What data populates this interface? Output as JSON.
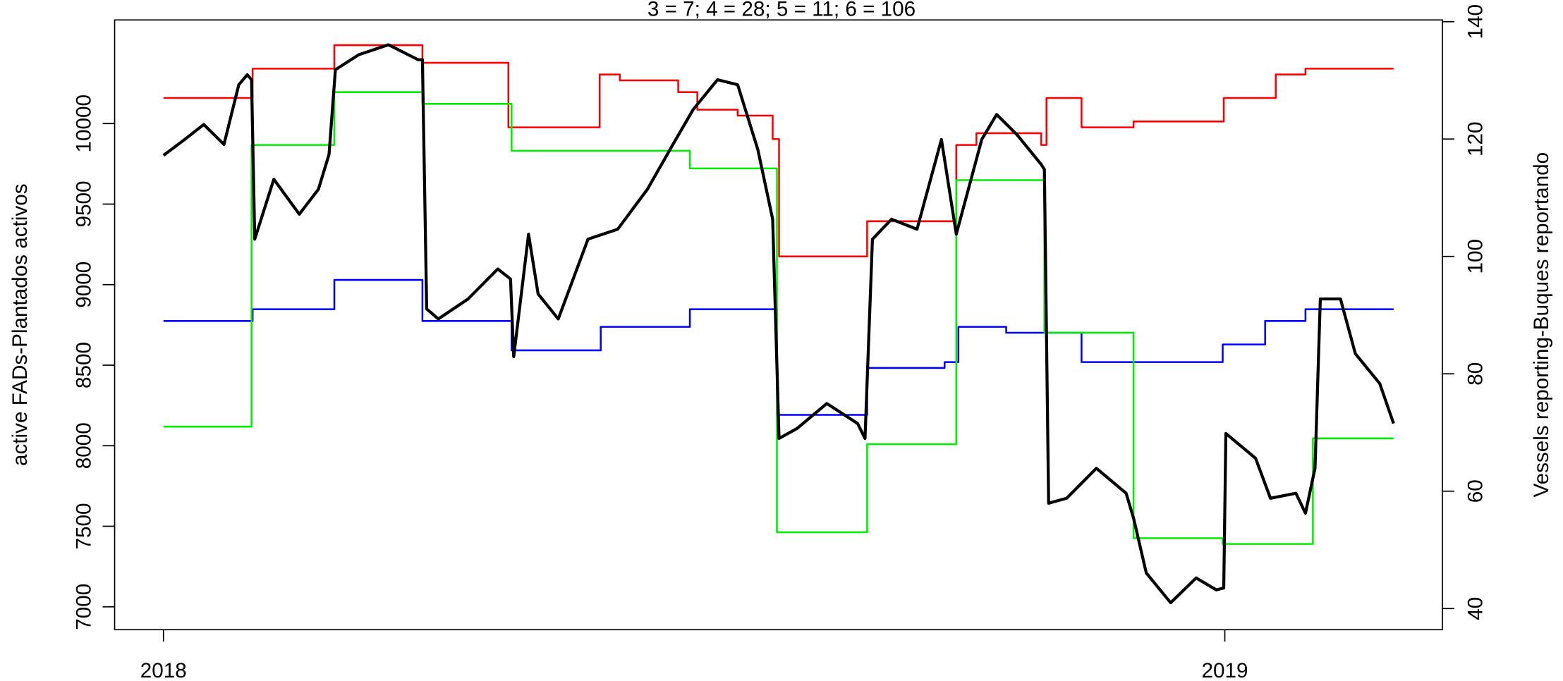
{
  "chart_data": {
    "type": "line",
    "title": "3 = 7; 4 = 28; 5 = 11; 6 = 106",
    "y_label": "active FADs-Plantados activos",
    "y2_label": "Vessels reporting-Buques reportando",
    "xlim": [
      2017.954,
      2019.205
    ],
    "xticks": [
      2018,
      2019
    ],
    "ylim": [
      6858,
      10643
    ],
    "yticks": [
      7000,
      7500,
      8000,
      8500,
      9000,
      9500,
      10000
    ],
    "y2lim": [
      36.4,
      140.3
    ],
    "y2ticks": [
      40,
      60,
      80,
      100,
      120,
      140
    ],
    "series": [
      {
        "color": "#ff0000",
        "axis": "y2",
        "x": [
          2018,
          2018.084,
          2018.084,
          2018.161,
          2018.161,
          2018.244,
          2018.244,
          2018.325,
          2018.325,
          2018.411,
          2018.411,
          2018.43,
          2018.43,
          2018.485,
          2018.485,
          2018.503,
          2018.503,
          2018.541,
          2018.541,
          2018.574,
          2018.574,
          2018.58,
          2018.58,
          2018.663,
          2018.663,
          2018.747,
          2018.747,
          2018.766,
          2018.766,
          2018.827,
          2018.827,
          2018.832,
          2018.832,
          2018.865,
          2018.865,
          2018.914,
          2018.914,
          2018.999,
          2018.999,
          2019.048,
          2019.048,
          2019.076,
          2019.076,
          2019.159
        ],
        "values": [
          127,
          127,
          132,
          132,
          136,
          136,
          133,
          133,
          122,
          122,
          131,
          131,
          130,
          130,
          128,
          128,
          125,
          125,
          124,
          124,
          120,
          120,
          100,
          100,
          106,
          106,
          119,
          119,
          121,
          121,
          119,
          119,
          127,
          127,
          122,
          122,
          123,
          123,
          127,
          127,
          131,
          131,
          132,
          132
        ]
      },
      {
        "color": "#0000ff",
        "axis": "y2",
        "x": [
          2018,
          2018.084,
          2018.084,
          2018.161,
          2018.161,
          2018.244,
          2018.244,
          2018.328,
          2018.328,
          2018.412,
          2018.412,
          2018.496,
          2018.496,
          2018.578,
          2018.578,
          2018.663,
          2018.663,
          2018.736,
          2018.736,
          2018.749,
          2018.749,
          2018.794,
          2018.794,
          2018.865,
          2018.865,
          2018.998,
          2018.998,
          2019.038,
          2019.038,
          2019.076,
          2019.076,
          2019.159
        ],
        "values": [
          89,
          89,
          91,
          91,
          96,
          96,
          89,
          89,
          84,
          84,
          88,
          88,
          91,
          91,
          73,
          73,
          81,
          81,
          82,
          82,
          88,
          88,
          87,
          87,
          82,
          82,
          85,
          85,
          89,
          89,
          91,
          91
        ]
      },
      {
        "color": "#00ee00",
        "axis": "y2",
        "x": [
          2018,
          2018.083,
          2018.083,
          2018.161,
          2018.161,
          2018.244,
          2018.244,
          2018.328,
          2018.328,
          2018.496,
          2018.496,
          2018.578,
          2018.578,
          2018.663,
          2018.663,
          2018.747,
          2018.747,
          2018.83,
          2018.83,
          2018.914,
          2018.914,
          2018.998,
          2018.998,
          2019.083,
          2019.083,
          2019.159
        ],
        "values": [
          71,
          71,
          119,
          119,
          128,
          128,
          126,
          126,
          118,
          118,
          115,
          115,
          53,
          53,
          68,
          68,
          113,
          113,
          87,
          87,
          52,
          52,
          51,
          51,
          69,
          69
        ]
      },
      {
        "color": "#000000",
        "axis": "y",
        "x": [
          2018,
          2018.02,
          2018.038,
          2018.057,
          2018.071,
          2018.079,
          2018.083,
          2018.086,
          2018.104,
          2018.128,
          2018.146,
          2018.156,
          2018.162,
          2018.184,
          2018.212,
          2018.24,
          2018.244,
          2018.248,
          2018.259,
          2018.287,
          2018.315,
          2018.327,
          2018.33,
          2018.344,
          2018.353,
          2018.372,
          2018.4,
          2018.428,
          2018.456,
          2018.48,
          2018.499,
          2018.522,
          2018.541,
          2018.56,
          2018.574,
          2018.58,
          2018.597,
          2018.625,
          2018.654,
          2018.661,
          2018.668,
          2018.686,
          2018.71,
          2018.733,
          2018.747,
          2018.771,
          2018.785,
          2018.804,
          2018.827,
          2018.83,
          2018.834,
          2018.851,
          2018.879,
          2018.907,
          2018.914,
          2018.926,
          2018.949,
          2018.973,
          2018.992,
          2018.999,
          2019.001,
          2019.029,
          2019.043,
          2019.067,
          2019.076,
          2019.085,
          2019.09,
          2019.109,
          2019.123,
          2019.146,
          2019.159
        ],
        "values": [
          9802,
          9901,
          9994,
          9870,
          10241,
          10303,
          10272,
          9282,
          9654,
          9437,
          9592,
          9808,
          10334,
          10427,
          10489,
          10396,
          10396,
          8849,
          8787,
          8911,
          9097,
          9035,
          8553,
          9313,
          8942,
          8787,
          9282,
          9344,
          9592,
          9870,
          10086,
          10272,
          10241,
          9839,
          9406,
          8045,
          8107,
          8262,
          8138,
          8045,
          9282,
          9406,
          9344,
          9901,
          9313,
          9901,
          10056,
          9932,
          9746,
          9715,
          7643,
          7674,
          7860,
          7705,
          7551,
          7210,
          7025,
          7179,
          7105,
          7117,
          8076,
          7922,
          7674,
          7705,
          7581,
          7860,
          8911,
          8911,
          8571,
          8386,
          8138
        ]
      }
    ]
  }
}
